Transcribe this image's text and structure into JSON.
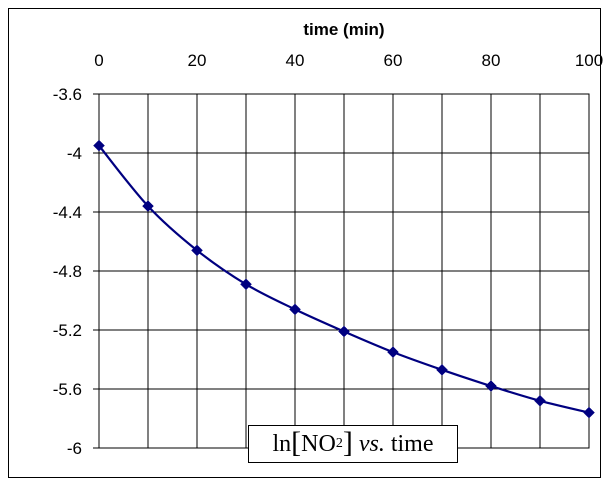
{
  "chart_data": {
    "type": "line",
    "title": {
      "fn": "ln",
      "open": "[",
      "species": "NO",
      "subscript": "2",
      "close": "]",
      "vs": "vs.",
      "word": "time"
    },
    "xlabel": "time (min)",
    "ylabel": "",
    "xlim": [
      0,
      100
    ],
    "ylim": [
      -6,
      -3.6
    ],
    "x_ticks": [
      "0",
      "20",
      "40",
      "60",
      "80",
      "100"
    ],
    "y_ticks": [
      "-3.6",
      "-4",
      "-4.4",
      "-4.8",
      "-5.2",
      "-5.6",
      "-6"
    ],
    "x_axis_position": "top",
    "grid": true,
    "series": [
      {
        "color": "#000080",
        "marker": "diamond",
        "x": [
          0,
          10,
          20,
          30,
          40,
          50,
          60,
          70,
          80,
          90,
          100
        ],
        "y": [
          -3.95,
          -4.36,
          -4.66,
          -4.89,
          -5.06,
          -5.21,
          -5.35,
          -5.47,
          -5.58,
          -5.68,
          -5.76
        ]
      }
    ]
  }
}
